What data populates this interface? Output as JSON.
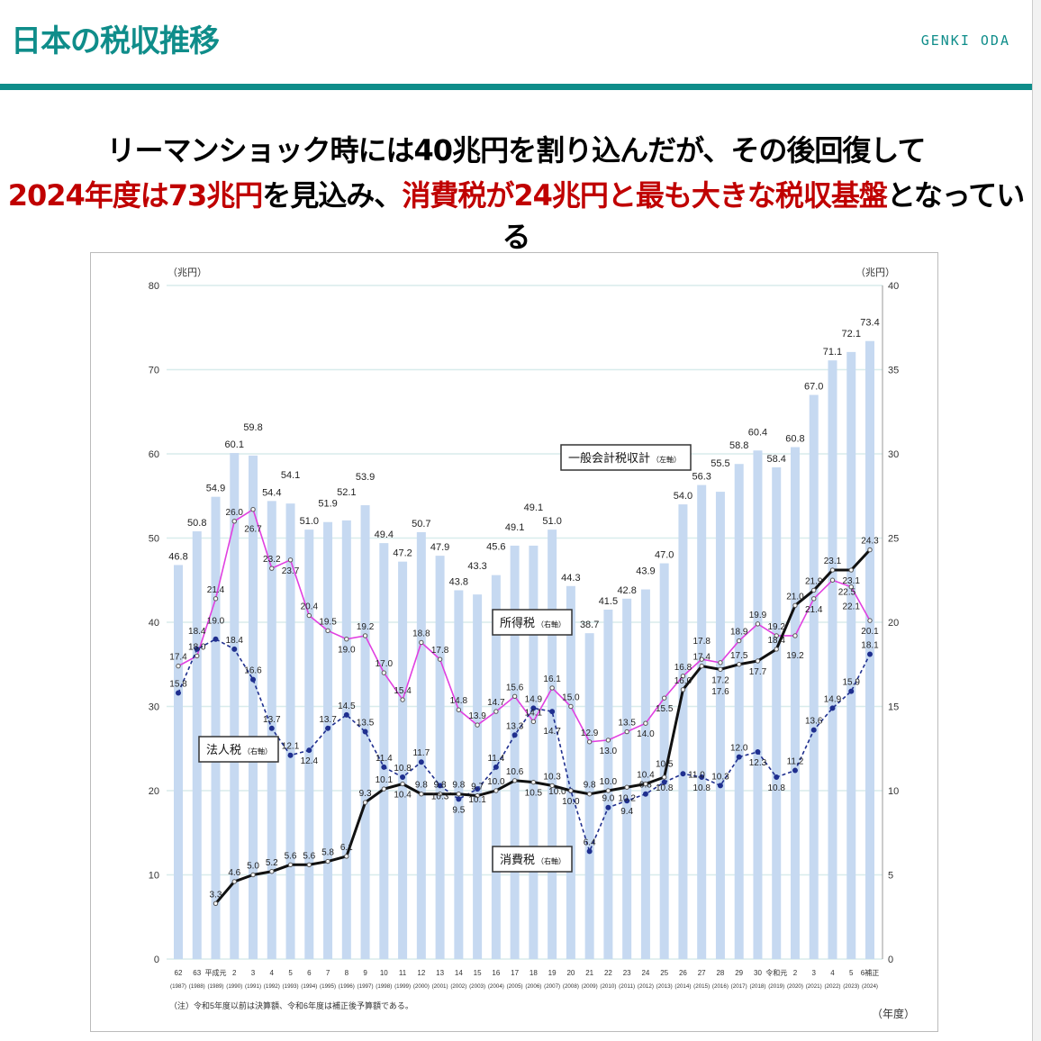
{
  "header": {
    "title": "日本の税収推移",
    "author": "GENKI ODA"
  },
  "headline": {
    "line1": "リーマンショック時には40兆円を割り込んだが、その後回復して",
    "line2": [
      {
        "t": "2024年度は73兆円",
        "red": true
      },
      {
        "t": "を見込み、",
        "red": false
      },
      {
        "t": "消費税が24兆円と最も大きな税収基盤",
        "red": true
      },
      {
        "t": "となっている",
        "red": false
      }
    ]
  },
  "chart_data": {
    "type": "bar+line",
    "left_unit": "（兆円）",
    "right_unit": "（兆円）",
    "x_unit": "（年度）",
    "left_ylim": [
      0,
      80
    ],
    "left_ticks": [
      0,
      10,
      20,
      30,
      40,
      50,
      60,
      70,
      80
    ],
    "right_ylim": [
      0,
      40
    ],
    "right_ticks": [
      0,
      5,
      10,
      15,
      20,
      25,
      30,
      35,
      40
    ],
    "grid": true,
    "note": "（注）令和5年度以前は決算額、令和6年度は補正後予算額である。",
    "categories": [
      "62",
      "63",
      "平成元",
      "2",
      "3",
      "4",
      "5",
      "6",
      "7",
      "8",
      "9",
      "10",
      "11",
      "12",
      "13",
      "14",
      "15",
      "16",
      "17",
      "18",
      "19",
      "20",
      "21",
      "22",
      "23",
      "24",
      "25",
      "26",
      "27",
      "28",
      "29",
      "30",
      "令和元",
      "2",
      "3",
      "4",
      "5",
      "6補正"
    ],
    "years": [
      "(1987)",
      "(1988)",
      "(1989)",
      "(1990)",
      "(1991)",
      "(1992)",
      "(1993)",
      "(1994)",
      "(1995)",
      "(1996)",
      "(1997)",
      "(1998)",
      "(1999)",
      "(2000)",
      "(2001)",
      "(2002)",
      "(2003)",
      "(2004)",
      "(2005)",
      "(2006)",
      "(2007)",
      "(2008)",
      "(2009)",
      "(2010)",
      "(2011)",
      "(2012)",
      "(2013)",
      "(2014)",
      "(2015)",
      "(2016)",
      "(2017)",
      "(2018)",
      "(2019)",
      "(2020)",
      "(2021)",
      "(2022)",
      "(2023)",
      "(2024)"
    ],
    "series": [
      {
        "name": "一般会計税収計",
        "axis_note": "（左軸）",
        "type": "bar",
        "color": "#c6d9f1",
        "values": [
          46.8,
          50.8,
          54.9,
          60.1,
          59.8,
          54.4,
          54.1,
          51.0,
          51.9,
          52.1,
          53.9,
          49.4,
          47.2,
          50.7,
          47.9,
          43.8,
          43.3,
          45.6,
          49.1,
          49.1,
          51.0,
          44.3,
          38.7,
          41.5,
          42.8,
          43.9,
          47.0,
          54.0,
          56.3,
          55.5,
          58.8,
          60.4,
          58.4,
          60.8,
          67.0,
          71.1,
          72.1,
          73.4
        ]
      },
      {
        "name": "所得税",
        "axis_note": "（右軸）",
        "type": "line",
        "color": "#e040e0",
        "values": [
          17.4,
          18.0,
          21.4,
          26.0,
          26.7,
          23.2,
          23.7,
          20.4,
          19.5,
          19.0,
          19.2,
          17.0,
          15.4,
          18.8,
          17.8,
          14.8,
          13.9,
          14.7,
          15.6,
          14.1,
          16.1,
          15.0,
          12.9,
          13.0,
          13.5,
          14.0,
          15.5,
          16.8,
          17.8,
          17.6,
          18.9,
          19.9,
          19.2,
          19.2,
          21.4,
          22.5,
          22.1,
          20.1
        ]
      },
      {
        "name": "法人税",
        "axis_note": "（右軸）",
        "type": "line-dashed",
        "color": "#1f2f8f",
        "values": [
          15.8,
          18.4,
          19.0,
          18.4,
          16.6,
          13.7,
          12.1,
          12.4,
          13.7,
          14.5,
          13.5,
          11.4,
          10.8,
          11.7,
          10.3,
          9.5,
          10.1,
          11.4,
          13.3,
          14.9,
          14.7,
          10.0,
          6.4,
          9.0,
          9.4,
          9.8,
          10.5,
          11.0,
          10.8,
          10.3,
          12.0,
          12.3,
          10.8,
          11.2,
          13.6,
          14.9,
          15.9,
          18.1
        ]
      },
      {
        "name": "消費税",
        "axis_note": "（右軸）",
        "type": "line",
        "color": "#111111",
        "values": [
          null,
          null,
          3.3,
          4.6,
          5.0,
          5.2,
          5.6,
          5.6,
          5.8,
          6.1,
          9.3,
          10.1,
          10.4,
          9.8,
          9.8,
          9.8,
          9.7,
          10.0,
          10.6,
          10.5,
          10.3,
          10.0,
          9.8,
          10.0,
          10.2,
          10.4,
          10.8,
          16.0,
          17.4,
          17.2,
          17.5,
          17.7,
          18.4,
          21.0,
          21.9,
          23.1,
          23.1,
          24.3
        ]
      }
    ]
  }
}
